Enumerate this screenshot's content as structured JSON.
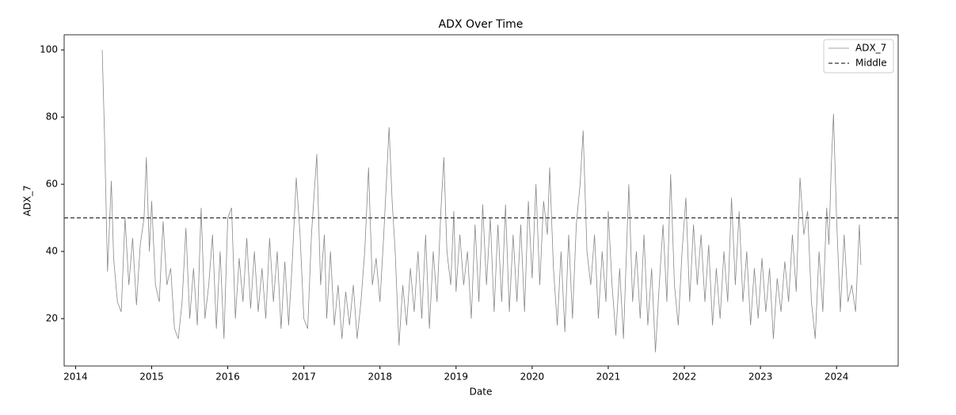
{
  "chart_data": {
    "type": "line",
    "title": "ADX Over Time",
    "x_label": "Date",
    "y_label": "ADX_7",
    "x": [
      2014.35,
      2014.38,
      2014.42,
      2014.47,
      2014.5,
      2014.55,
      2014.6,
      2014.65,
      2014.7,
      2014.75,
      2014.8,
      2014.85,
      2014.9,
      2014.93,
      2014.97,
      2015.0,
      2015.05,
      2015.1,
      2015.15,
      2015.2,
      2015.25,
      2015.3,
      2015.35,
      2015.4,
      2015.45,
      2015.5,
      2015.55,
      2015.6,
      2015.65,
      2015.7,
      2015.75,
      2015.8,
      2015.85,
      2015.9,
      2015.95,
      2016.0,
      2016.05,
      2016.1,
      2016.15,
      2016.2,
      2016.25,
      2016.3,
      2016.35,
      2016.4,
      2016.45,
      2016.5,
      2016.55,
      2016.6,
      2016.65,
      2016.7,
      2016.75,
      2016.8,
      2016.85,
      2016.9,
      2016.95,
      2017.0,
      2017.05,
      2017.1,
      2017.17,
      2017.22,
      2017.27,
      2017.3,
      2017.35,
      2017.4,
      2017.45,
      2017.5,
      2017.55,
      2017.6,
      2017.65,
      2017.7,
      2017.75,
      2017.8,
      2017.85,
      2017.9,
      2017.95,
      2018.0,
      2018.05,
      2018.12,
      2018.16,
      2018.2,
      2018.25,
      2018.3,
      2018.35,
      2018.4,
      2018.45,
      2018.5,
      2018.55,
      2018.6,
      2018.65,
      2018.7,
      2018.75,
      2018.8,
      2018.84,
      2018.88,
      2018.93,
      2018.97,
      2019.0,
      2019.05,
      2019.1,
      2019.15,
      2019.2,
      2019.25,
      2019.3,
      2019.35,
      2019.4,
      2019.45,
      2019.5,
      2019.55,
      2019.6,
      2019.65,
      2019.7,
      2019.75,
      2019.8,
      2019.85,
      2019.9,
      2019.95,
      2020.0,
      2020.05,
      2020.1,
      2020.15,
      2020.2,
      2020.23,
      2020.28,
      2020.33,
      2020.38,
      2020.43,
      2020.48,
      2020.53,
      2020.58,
      2020.63,
      2020.67,
      2020.72,
      2020.77,
      2020.82,
      2020.87,
      2020.92,
      2020.97,
      2021.0,
      2021.05,
      2021.1,
      2021.15,
      2021.2,
      2021.27,
      2021.32,
      2021.37,
      2021.42,
      2021.47,
      2021.52,
      2021.57,
      2021.62,
      2021.67,
      2021.72,
      2021.77,
      2021.82,
      2021.87,
      2021.92,
      2021.97,
      2022.02,
      2022.07,
      2022.12,
      2022.17,
      2022.22,
      2022.27,
      2022.32,
      2022.37,
      2022.42,
      2022.47,
      2022.52,
      2022.57,
      2022.62,
      2022.67,
      2022.72,
      2022.77,
      2022.82,
      2022.87,
      2022.92,
      2022.97,
      2023.02,
      2023.07,
      2023.12,
      2023.17,
      2023.22,
      2023.27,
      2023.32,
      2023.37,
      2023.42,
      2023.47,
      2023.52,
      2023.57,
      2023.62,
      2023.67,
      2023.72,
      2023.77,
      2023.82,
      2023.87,
      2023.9,
      2023.93,
      2023.96,
      2024.0,
      2024.05,
      2024.1,
      2024.15,
      2024.2,
      2024.25,
      2024.3,
      2024.32
    ],
    "series": [
      {
        "name": "ADX_7",
        "color": "#888888",
        "values": [
          100,
          75,
          34,
          61,
          38,
          25,
          22,
          50,
          30,
          44,
          24,
          42,
          50,
          68,
          40,
          55,
          30,
          25,
          49,
          30,
          35,
          17,
          14,
          25,
          47,
          20,
          35,
          18,
          53,
          20,
          30,
          45,
          17,
          40,
          14,
          50,
          53,
          20,
          38,
          25,
          44,
          23,
          40,
          22,
          35,
          20,
          44,
          25,
          40,
          17,
          37,
          18,
          38,
          62,
          45,
          20,
          17,
          45,
          69,
          30,
          45,
          20,
          40,
          18,
          30,
          14,
          28,
          18,
          30,
          14,
          25,
          40,
          65,
          30,
          38,
          25,
          45,
          77,
          55,
          40,
          12,
          30,
          18,
          35,
          22,
          40,
          20,
          45,
          17,
          40,
          25,
          52,
          68,
          40,
          30,
          52,
          28,
          45,
          30,
          40,
          20,
          48,
          25,
          54,
          30,
          50,
          22,
          48,
          25,
          54,
          22,
          45,
          25,
          48,
          22,
          55,
          32,
          60,
          30,
          55,
          45,
          65,
          35,
          18,
          40,
          16,
          45,
          20,
          48,
          60,
          76,
          40,
          30,
          45,
          20,
          40,
          25,
          52,
          30,
          15,
          35,
          14,
          60,
          25,
          40,
          20,
          45,
          18,
          35,
          10,
          30,
          48,
          25,
          63,
          30,
          18,
          40,
          56,
          25,
          48,
          30,
          45,
          25,
          42,
          18,
          35,
          20,
          40,
          25,
          56,
          30,
          52,
          25,
          40,
          18,
          35,
          20,
          38,
          22,
          35,
          14,
          32,
          22,
          37,
          25,
          45,
          28,
          62,
          45,
          52,
          25,
          14,
          40,
          22,
          53,
          42,
          65,
          81,
          50,
          22,
          45,
          25,
          30,
          22,
          48,
          36
        ]
      }
    ],
    "hlines": [
      {
        "name": "Middle",
        "value": 50,
        "color": "#333333"
      }
    ],
    "xlim": [
      2013.85,
      2024.81
    ],
    "xticks": [
      2014,
      2015,
      2016,
      2017,
      2018,
      2019,
      2020,
      2021,
      2022,
      2023,
      2024
    ],
    "ylim": [
      5.9,
      104.5
    ],
    "yticks": [
      20,
      40,
      60,
      80,
      100
    ],
    "legend": "upper-right"
  }
}
